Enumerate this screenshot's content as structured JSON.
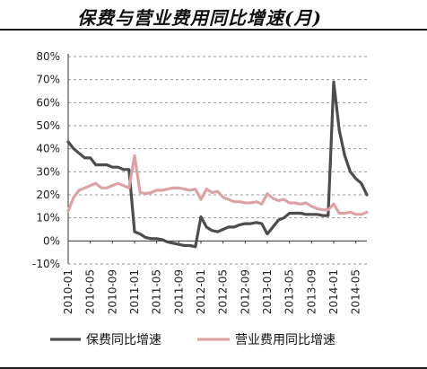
{
  "chart_data": {
    "type": "line",
    "title": "保费与营业费用同比增速(月)",
    "y_tick_labels": [
      "80%",
      "70%",
      "60%",
      "50%",
      "40%",
      "30%",
      "20%",
      "10%",
      "0%",
      "-10%"
    ],
    "ylim": [
      -10,
      80
    ],
    "grid": "y-dashed",
    "x_tick_labels": [
      "2010-01",
      "2010-05",
      "2010-09",
      "2011-01",
      "2011-05",
      "2011-09",
      "2012-01",
      "2012-05",
      "2012-09",
      "2013-01",
      "2013-05",
      "2013-09",
      "2014-01",
      "2014-05"
    ],
    "months": [
      "2010-01",
      "2010-02",
      "2010-03",
      "2010-04",
      "2010-05",
      "2010-06",
      "2010-07",
      "2010-08",
      "2010-09",
      "2010-10",
      "2010-11",
      "2010-12",
      "2011-01",
      "2011-02",
      "2011-03",
      "2011-04",
      "2011-05",
      "2011-06",
      "2011-07",
      "2011-08",
      "2011-09",
      "2011-10",
      "2011-11",
      "2011-12",
      "2012-01",
      "2012-02",
      "2012-03",
      "2012-04",
      "2012-05",
      "2012-06",
      "2012-07",
      "2012-08",
      "2012-09",
      "2012-10",
      "2012-11",
      "2012-12",
      "2013-01",
      "2013-02",
      "2013-03",
      "2013-04",
      "2013-05",
      "2013-06",
      "2013-07",
      "2013-08",
      "2013-09",
      "2013-10",
      "2013-11",
      "2013-12",
      "2014-01",
      "2014-02",
      "2014-03",
      "2014-04",
      "2014-05",
      "2014-06",
      "2014-07"
    ],
    "legend_position": "bottom",
    "series": [
      {
        "name": "保费同比增速",
        "color": "#4d4d4d",
        "values": [
          43,
          40,
          38,
          36,
          36,
          33,
          33,
          33,
          32,
          32,
          31,
          31,
          4,
          3,
          1.5,
          1,
          1,
          0.5,
          -0.5,
          -1,
          -1.5,
          -2,
          -2,
          -2.5,
          10.5,
          6,
          4.5,
          4,
          5,
          6,
          6,
          7,
          7.5,
          7.5,
          8,
          7.5,
          3,
          6,
          9,
          10,
          12,
          12,
          12,
          11.5,
          11.5,
          11.5,
          11,
          11,
          69,
          48,
          37,
          30,
          27,
          25,
          20
        ]
      },
      {
        "name": "营业费用同比增速",
        "color": "#dda3a3",
        "values": [
          13,
          19,
          22,
          23,
          24,
          25,
          23,
          23,
          24,
          25,
          24,
          23,
          37,
          21,
          20.5,
          21,
          22,
          22,
          22.5,
          23,
          23,
          22.5,
          22,
          22.5,
          18,
          22.5,
          21,
          21.5,
          19,
          18,
          17,
          17,
          16.5,
          16.5,
          17,
          16,
          20.5,
          18.5,
          17.5,
          18,
          16.5,
          16.5,
          16,
          16.5,
          15,
          14,
          13.5,
          13.5,
          16,
          12,
          12,
          12.5,
          11.5,
          11.5,
          12.5
        ]
      }
    ]
  }
}
